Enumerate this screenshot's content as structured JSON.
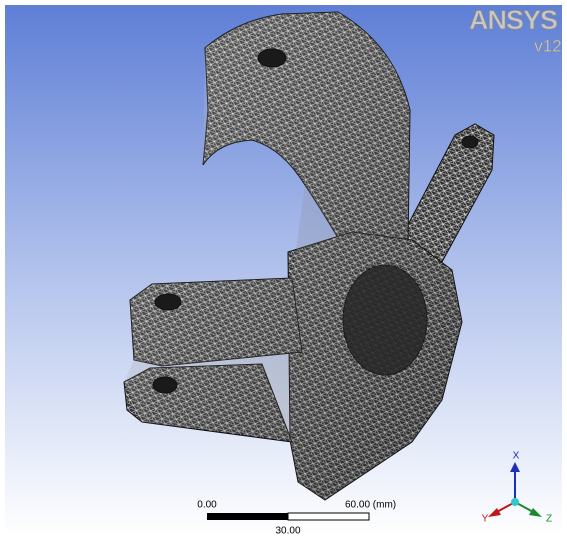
{
  "logo": {
    "brand": "ANSYS",
    "version": "v12"
  },
  "scale_bar": {
    "left": "0.00",
    "right": "60.00 (mm)",
    "middle": "30.00"
  },
  "triad": {
    "x": "X",
    "y": "Y",
    "z": "Z"
  }
}
